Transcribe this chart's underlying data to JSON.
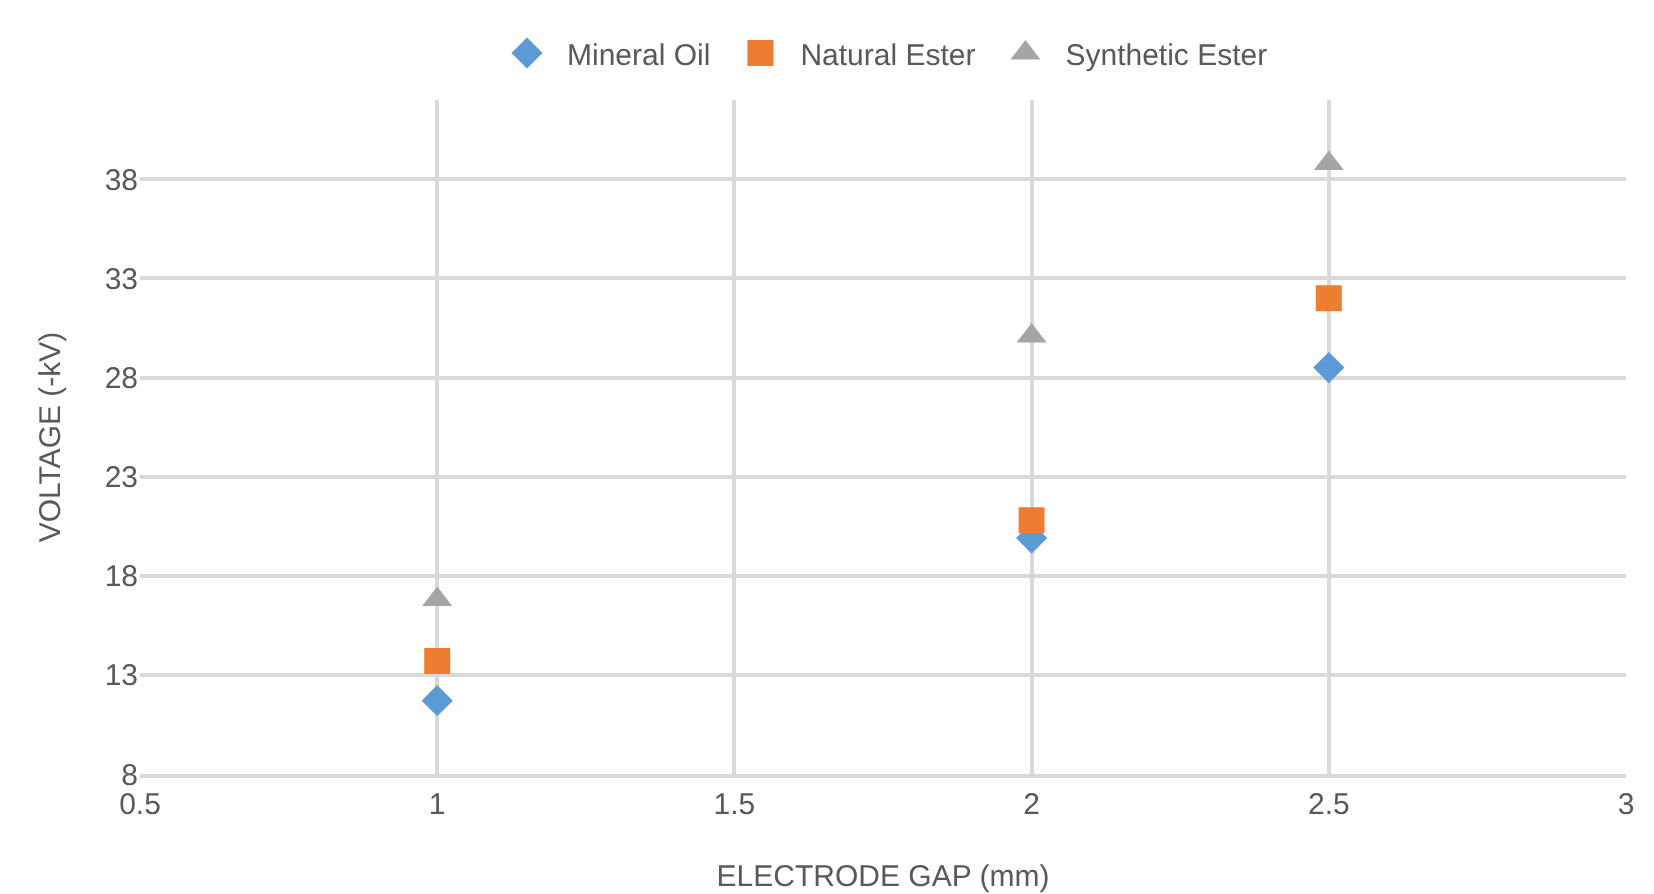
{
  "chart_data": {
    "type": "scatter",
    "xlabel": "ELECTRODE GAP (mm)",
    "ylabel": "VOLTAGE (-kV)",
    "x": [
      1,
      2,
      2.5
    ],
    "series": [
      {
        "name": "Mineral Oil",
        "color": "#5b9bd5",
        "marker": "diamond",
        "values": [
          11.7,
          19.9,
          28.5
        ]
      },
      {
        "name": "Natural Ester",
        "color": "#ed7d31",
        "marker": "square",
        "values": [
          13.7,
          20.8,
          32
        ]
      },
      {
        "name": "Synthetic Ester",
        "color": "#a5a5a5",
        "marker": "triangle",
        "values": [
          16.8,
          30.1,
          38.8
        ]
      }
    ],
    "xlim": [
      0.5,
      3
    ],
    "xticks": [
      0.5,
      1,
      1.5,
      2,
      2.5,
      3
    ],
    "ylim": [
      8,
      42
    ],
    "yticks": [
      8,
      13,
      18,
      23,
      28,
      33,
      38
    ],
    "grid": true,
    "legend": "top"
  }
}
